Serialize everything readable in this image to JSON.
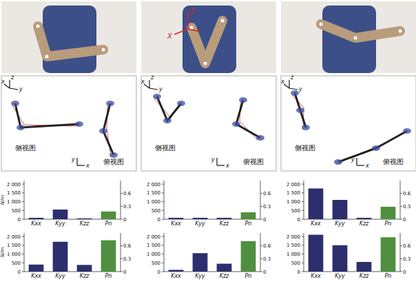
{
  "middle_photo_axes": [
    "Z",
    "X"
  ],
  "skeleton_views": [
    {
      "side_label": "侧视图",
      "top_label": "俯视图",
      "side_axes": [
        "x",
        "y",
        "z"
      ],
      "top_axes": [
        "y",
        "x"
      ]
    },
    {
      "side_label": "侧视图",
      "top_label": "俯视图",
      "side_axes": [
        "x",
        "y",
        "z"
      ],
      "top_axes": [
        "y",
        "x"
      ]
    },
    {
      "side_label": "侧视图",
      "top_label": "俯视图",
      "side_axes": [
        "x",
        "y",
        "z"
      ],
      "top_axes": [
        "y",
        "x"
      ]
    }
  ],
  "chart_data": [
    {
      "type": "bar",
      "y_label": "N/m",
      "categories": [
        "Kxx",
        "Kyy",
        "Kzz",
        "Pn"
      ],
      "series": [
        {
          "values": [
            80,
            550,
            50,
            null
          ],
          "color": "#2c2e6e"
        },
        {
          "values": [
            null,
            null,
            null,
            0.18
          ],
          "color": "#4f8f3f",
          "axis": "y2"
        }
      ],
      "ylim": [
        0,
        2200
      ],
      "yticks": [
        0,
        500,
        {
          "value": 1000,
          "label": "1 000"
        },
        {
          "value": 1500,
          "label": "1 500"
        },
        {
          "value": 2000,
          "label": "2 000"
        }
      ],
      "y2lim": [
        0,
        0.9
      ],
      "y2ticks": [
        0,
        0.3,
        0.6
      ]
    },
    {
      "type": "bar",
      "categories": [
        "Kxx",
        "Kyy",
        "Kzz",
        "Pn"
      ],
      "series": [
        {
          "values": [
            80,
            80,
            80,
            null
          ],
          "color": "#2c2e6e"
        },
        {
          "values": [
            null,
            null,
            null,
            0.16
          ],
          "color": "#4f8f3f",
          "axis": "y2"
        }
      ],
      "ylim": [
        0,
        2200
      ],
      "yticks": [
        0,
        500,
        {
          "value": 1000,
          "label": "1 000"
        },
        {
          "value": 1500,
          "label": "1 500"
        },
        {
          "value": 2000,
          "label": "2 000"
        }
      ],
      "y2lim": [
        0,
        0.9
      ],
      "y2ticks": [
        0,
        0.3,
        0.6
      ]
    },
    {
      "type": "bar",
      "categories": [
        "Kxx",
        "Kyy",
        "Kzz",
        "Pn"
      ],
      "series": [
        {
          "values": [
            1750,
            1100,
            80,
            null
          ],
          "color": "#2c2e6e"
        },
        {
          "values": [
            null,
            null,
            null,
            0.29
          ],
          "color": "#4f8f3f",
          "axis": "y2"
        }
      ],
      "ylim": [
        0,
        2200
      ],
      "yticks": [
        0,
        500,
        {
          "value": 1000,
          "label": "1 000"
        },
        {
          "value": 1500,
          "label": "1 500"
        },
        {
          "value": 2000,
          "label": "2 000"
        }
      ],
      "y2lim": [
        0,
        0.9
      ],
      "y2ticks": [
        0,
        0.3,
        0.6
      ]
    },
    {
      "type": "bar",
      "y_label": "N/m",
      "categories": [
        "Kxx",
        "Kyy",
        "Kzz",
        "Pn"
      ],
      "series": [
        {
          "values": [
            400,
            1700,
            380,
            null
          ],
          "color": "#2c2e6e"
        },
        {
          "values": [
            null,
            null,
            null,
            0.73
          ],
          "color": "#4f8f3f",
          "axis": "y2"
        }
      ],
      "ylim": [
        0,
        2200
      ],
      "yticks": [
        0,
        500,
        {
          "value": 1000,
          "label": "1 000"
        },
        {
          "value": 1500,
          "label": "1 500"
        },
        {
          "value": 2000,
          "label": "2 000"
        }
      ],
      "y2lim": [
        0,
        0.9
      ],
      "y2ticks": [
        0,
        0.3,
        0.6
      ]
    },
    {
      "type": "bar",
      "categories": [
        "Kxx",
        "Kyy",
        "Kzz",
        "Pn"
      ],
      "series": [
        {
          "values": [
            100,
            1050,
            450,
            null
          ],
          "color": "#2c2e6e"
        },
        {
          "values": [
            null,
            null,
            null,
            0.71
          ],
          "color": "#4f8f3f",
          "axis": "y2"
        }
      ],
      "ylim": [
        0,
        2200
      ],
      "yticks": [
        0,
        500,
        {
          "value": 1000,
          "label": "1 000"
        },
        {
          "value": 1500,
          "label": "1 500"
        },
        {
          "value": 2000,
          "label": "2 000"
        }
      ],
      "y2lim": [
        0,
        0.9
      ],
      "y2ticks": [
        0,
        0.3,
        0.6
      ]
    },
    {
      "type": "bar",
      "categories": [
        "Kxx",
        "Kyy",
        "Kzz",
        "Pn"
      ],
      "series": [
        {
          "values": [
            2100,
            1500,
            550,
            null
          ],
          "color": "#2c2e6e"
        },
        {
          "values": [
            null,
            null,
            null,
            0.8
          ],
          "color": "#4f8f3f",
          "axis": "y2"
        }
      ],
      "ylim": [
        0,
        2200
      ],
      "yticks": [
        0,
        500,
        {
          "value": 1000,
          "label": "1 000"
        },
        {
          "value": 1500,
          "label": "1 500"
        },
        {
          "value": 2000,
          "label": "2 000"
        }
      ],
      "y2lim": [
        0,
        0.9
      ],
      "y2ticks": [
        0,
        0.3,
        0.6
      ]
    }
  ]
}
